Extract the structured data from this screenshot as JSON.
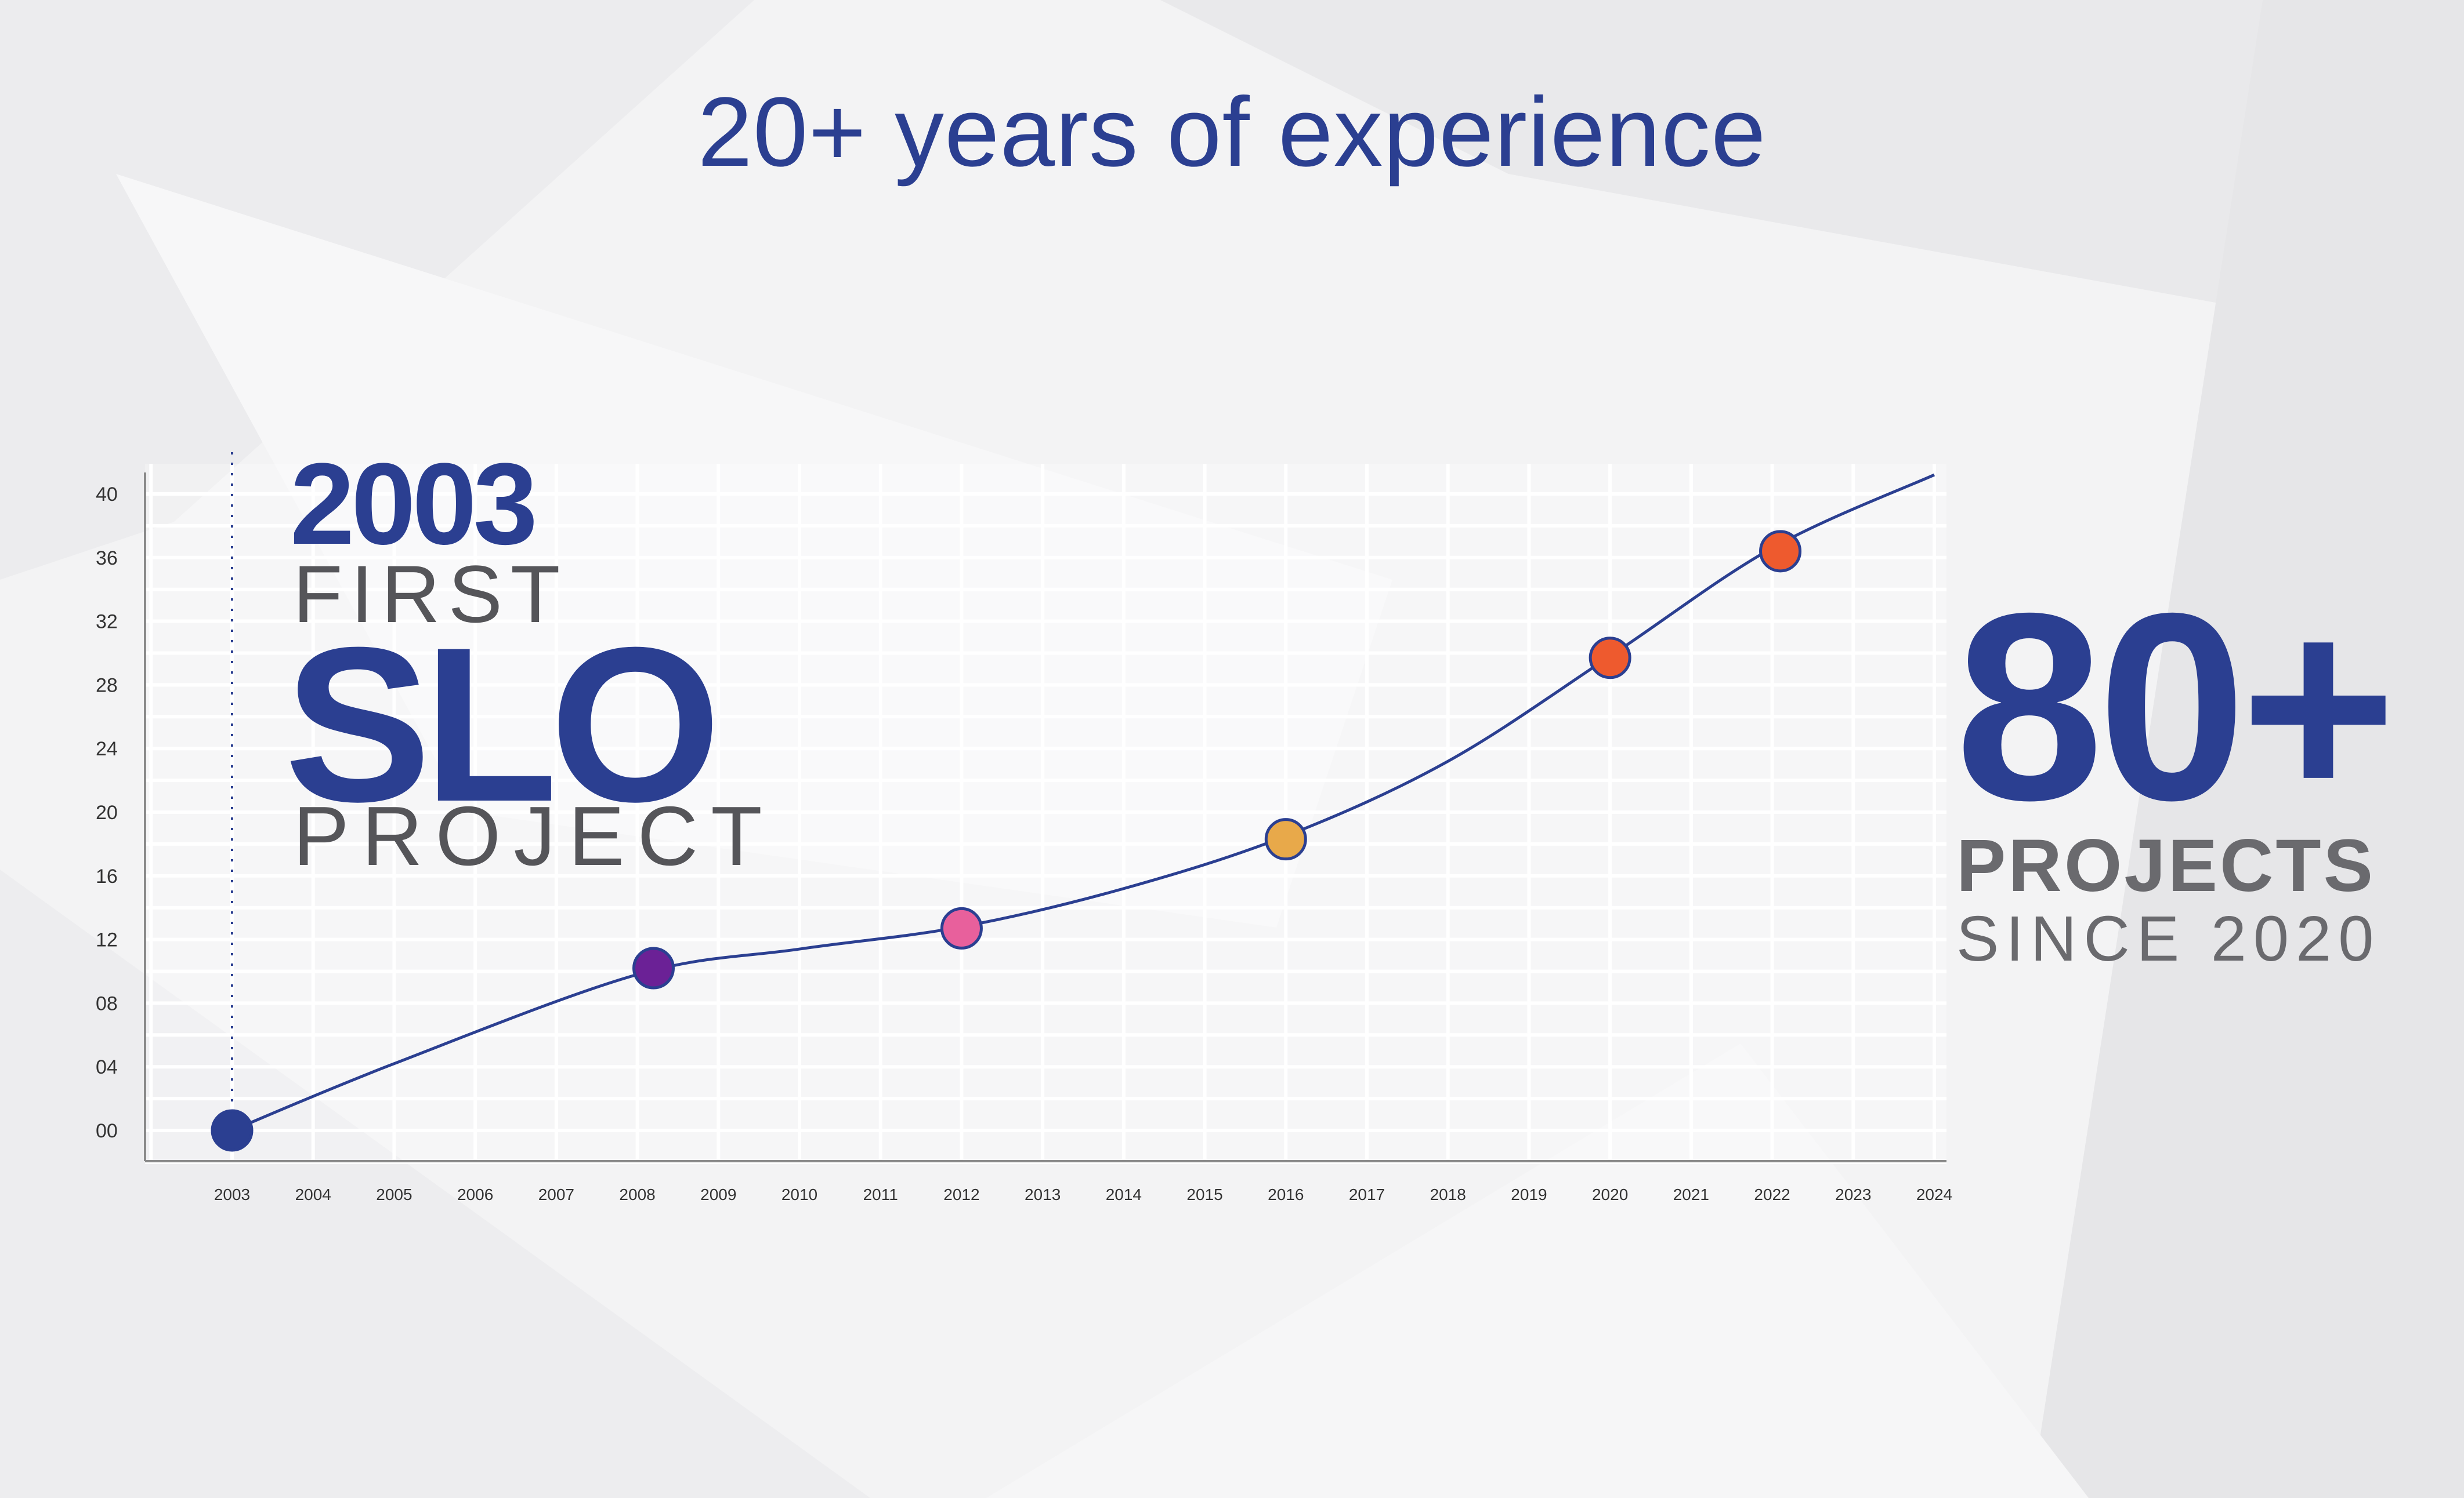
{
  "title": "20+ years of experience",
  "highlight_left": {
    "year": "2003",
    "line1": "FIRST",
    "line2": "SLO",
    "line3": "PROJECT"
  },
  "highlight_right": {
    "value": "80+",
    "line1": "PROJECTS",
    "line2": "SINCE 2020"
  },
  "colors": {
    "primary": "#2b3f91",
    "text_gray": "#555559",
    "grid": "#ffffff",
    "axis": "#8a8a8a"
  },
  "chart_data": {
    "type": "line",
    "x": [
      "2003",
      "2004",
      "2005",
      "2006",
      "2007",
      "2008",
      "2009",
      "2010",
      "2011",
      "2012",
      "2013",
      "2014",
      "2015",
      "2016",
      "2017",
      "2018",
      "2019",
      "2020",
      "2021",
      "2022",
      "2023",
      "2024"
    ],
    "y_ticks": [
      "00",
      "04",
      "08",
      "12",
      "16",
      "20",
      "24",
      "28",
      "32",
      "36",
      "40"
    ],
    "ylim": [
      0,
      40
    ],
    "grid": true,
    "series": [
      {
        "curve": [
          [
            2003,
            0
          ],
          [
            2005,
            4.2
          ],
          [
            2008,
            9.8
          ],
          [
            2010,
            11.4
          ],
          [
            2012,
            12.8
          ],
          [
            2014,
            15.2
          ],
          [
            2016,
            18.5
          ],
          [
            2018,
            23.2
          ],
          [
            2020,
            29.8
          ],
          [
            2022,
            36.6
          ],
          [
            2024,
            41.2
          ]
        ],
        "line_color": "#2b3f91"
      }
    ],
    "milestones": [
      {
        "x": 2003,
        "y": 0,
        "color": "#2b3f91"
      },
      {
        "x": 2008.2,
        "y": 10.2,
        "color": "#6b2196"
      },
      {
        "x": 2012,
        "y": 12.7,
        "color": "#e8609c"
      },
      {
        "x": 2016,
        "y": 18.3,
        "color": "#e8a94a"
      },
      {
        "x": 2020,
        "y": 29.7,
        "color": "#ee5a2e"
      },
      {
        "x": 2022.1,
        "y": 36.4,
        "color": "#ee5a2e"
      }
    ],
    "marker_line_at": 2003
  }
}
